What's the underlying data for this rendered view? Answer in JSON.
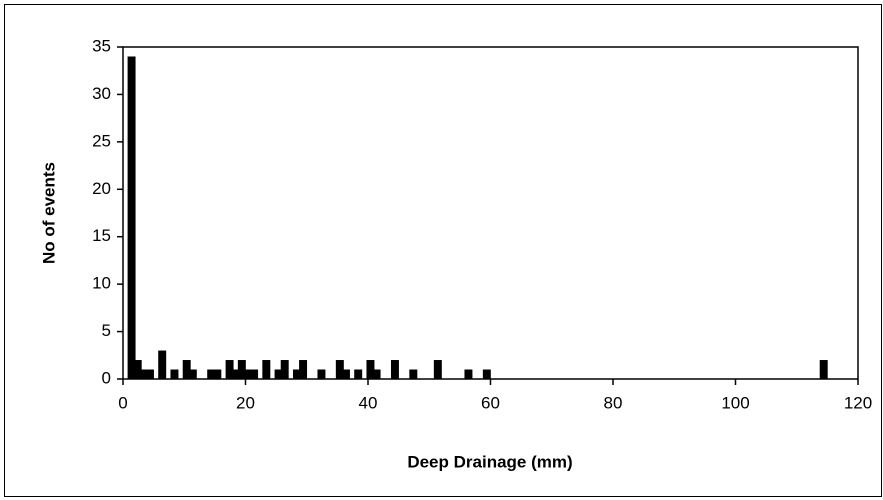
{
  "chart_data": {
    "type": "bar",
    "x_label": "Deep Drainage (mm)",
    "y_label": "No of events",
    "x": [
      1.4,
      2.4,
      3.4,
      4.4,
      6.4,
      8.4,
      10.4,
      11.4,
      14.4,
      15.4,
      17.4,
      18.4,
      19.4,
      20.4,
      21.4,
      23.4,
      25.4,
      26.4,
      28.4,
      29.4,
      32.4,
      35.4,
      36.4,
      38.4,
      40.4,
      41.4,
      44.4,
      47.4,
      51.4,
      56.4,
      59.4,
      114.4
    ],
    "values": [
      34,
      2,
      1,
      1,
      3,
      1,
      2,
      1,
      1,
      1,
      2,
      1,
      2,
      1,
      1,
      2,
      1,
      2,
      1,
      2,
      1,
      2,
      1,
      1,
      2,
      1,
      2,
      1,
      2,
      1,
      1,
      2
    ],
    "color": "#000000",
    "xlim": [
      0,
      120
    ],
    "xticks": [
      0,
      20,
      40,
      60,
      80,
      100,
      120
    ],
    "ylim": [
      0,
      35
    ],
    "yticks": [
      0,
      5,
      10,
      15,
      20,
      25,
      30,
      35
    ],
    "grid": false
  }
}
